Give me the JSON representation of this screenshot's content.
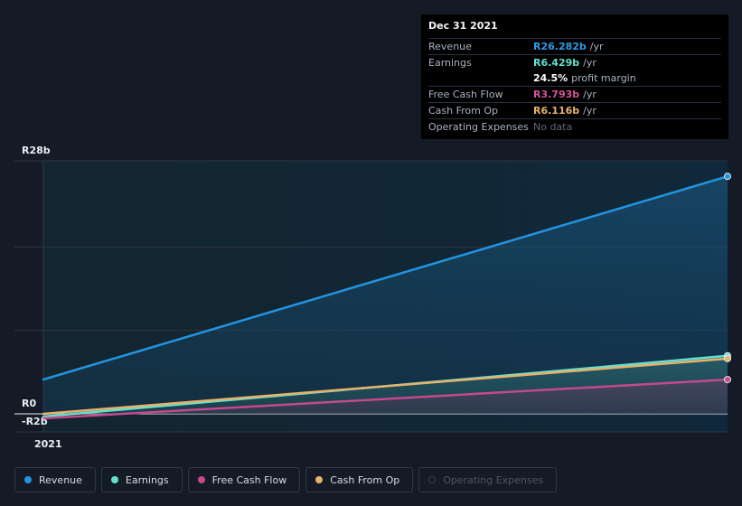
{
  "chart_data": {
    "type": "area",
    "x": [
      2021.0,
      2022.0
    ],
    "x_tick_label": "2021",
    "y_ticks": [
      "R28b",
      "R0",
      "-R2b"
    ],
    "ylim": [
      -2,
      28
    ],
    "series": [
      {
        "name": "Revenue",
        "color": "#2394df",
        "values": [
          3.8,
          26.282
        ],
        "fill": true
      },
      {
        "name": "Earnings",
        "color": "#63e0cf",
        "values": [
          -0.3,
          6.429
        ],
        "fill": true
      },
      {
        "name": "Free Cash Flow",
        "color": "#c4498d",
        "values": [
          -0.5,
          3.793
        ],
        "fill": true
      },
      {
        "name": "Cash From Op",
        "color": "#e7b26a",
        "values": [
          0.0,
          6.116
        ],
        "fill": false
      }
    ]
  },
  "tooltip": {
    "date": "Dec 31 2021",
    "rows": [
      {
        "label": "Revenue",
        "value": "R26.282b",
        "unit": "/yr",
        "color": "#2d9ce6"
      },
      {
        "label": "Earnings",
        "value": "R6.429b",
        "unit": "/yr",
        "color": "#63e0cf"
      },
      {
        "label": "",
        "value": "24.5%",
        "unit": "profit margin",
        "color": "#ffffff"
      },
      {
        "label": "Free Cash Flow",
        "value": "R3.793b",
        "unit": "/yr",
        "color": "#d25597"
      },
      {
        "label": "Cash From Op",
        "value": "R6.116b",
        "unit": "/yr",
        "color": "#e7b26a"
      },
      {
        "label": "Operating Expenses",
        "value": "No data",
        "unit": "",
        "color": "#5f6674"
      }
    ]
  },
  "legend": [
    {
      "label": "Revenue",
      "color": "#2394df",
      "active": true
    },
    {
      "label": "Earnings",
      "color": "#63e0cf",
      "active": true
    },
    {
      "label": "Free Cash Flow",
      "color": "#c4498d",
      "active": true
    },
    {
      "label": "Cash From Op",
      "color": "#e7b26a",
      "active": true
    },
    {
      "label": "Operating Expenses",
      "color": "#2d3a66",
      "active": false
    }
  ]
}
